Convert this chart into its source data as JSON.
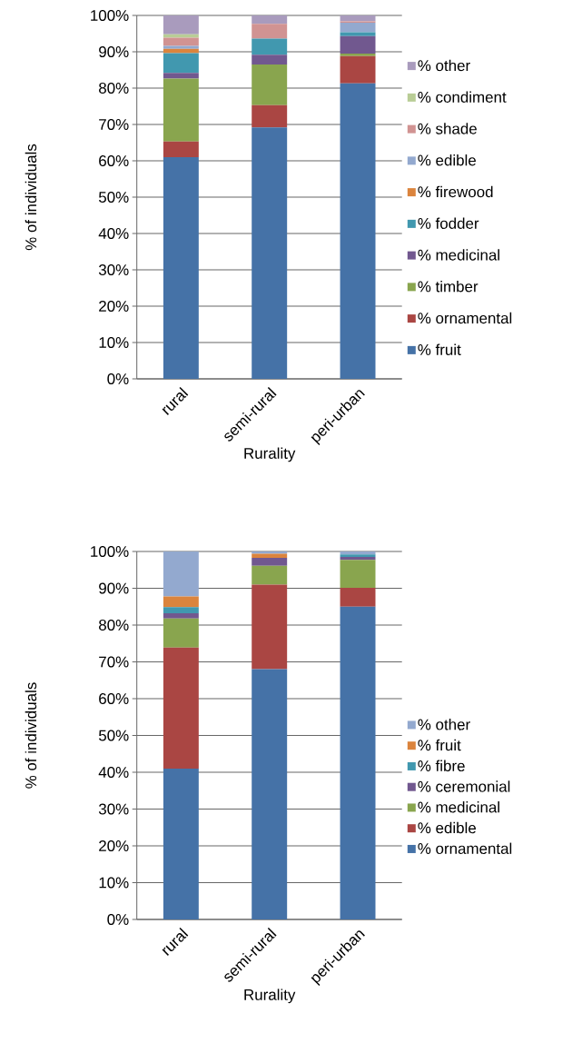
{
  "chart_data": [
    {
      "type": "bar",
      "stacked": true,
      "xlabel": "Rurality",
      "ylabel": "% of individuals",
      "categories": [
        "rural",
        "semi-rural",
        "peri-urban"
      ],
      "ylim": [
        0,
        100
      ],
      "yticks": [
        {
          "value": 0,
          "label": "0%"
        },
        {
          "value": 10,
          "label": "10%"
        },
        {
          "value": 20,
          "label": "20%"
        },
        {
          "value": 30,
          "label": "30%"
        },
        {
          "value": 40,
          "label": "40%"
        },
        {
          "value": 50,
          "label": "50%"
        },
        {
          "value": 60,
          "label": "60%"
        },
        {
          "value": 70,
          "label": "70%"
        },
        {
          "value": 80,
          "label": "80%"
        },
        {
          "value": 90,
          "label": "90%"
        },
        {
          "value": 100,
          "label": "100%"
        }
      ],
      "grid": "y",
      "legend": "right",
      "series": [
        {
          "name": "% fruit",
          "color": "#4572a7",
          "values": [
            61.0,
            69.2,
            81.3
          ]
        },
        {
          "name": "% ornamental",
          "color": "#aa4643",
          "values": [
            4.3,
            6.1,
            7.5
          ]
        },
        {
          "name": "% timber",
          "color": "#89a54e",
          "values": [
            17.3,
            11.2,
            0.7
          ]
        },
        {
          "name": "% medicinal",
          "color": "#71588f",
          "values": [
            1.6,
            2.7,
            4.8
          ]
        },
        {
          "name": "% fodder",
          "color": "#4198af",
          "values": [
            5.4,
            4.4,
            1.1
          ]
        },
        {
          "name": "% firewood",
          "color": "#db843d",
          "values": [
            1.2,
            0,
            0
          ]
        },
        {
          "name": "% edible",
          "color": "#93a9cf",
          "values": [
            0.8,
            0,
            2.6
          ]
        },
        {
          "name": "% shade",
          "color": "#d19392",
          "values": [
            2.3,
            4.1,
            0.4
          ]
        },
        {
          "name": "% condiment",
          "color": "#b9cd96",
          "values": [
            0.9,
            0,
            0
          ]
        },
        {
          "name": "% other",
          "color": "#a99bbd",
          "values": [
            5.2,
            2.3,
            1.6
          ]
        }
      ]
    },
    {
      "type": "bar",
      "stacked": true,
      "xlabel": "Rurality",
      "ylabel": "% of individuals",
      "categories": [
        "rural",
        "semi-rural",
        "peri-urban"
      ],
      "ylim": [
        0,
        100
      ],
      "yticks": [
        {
          "value": 0,
          "label": "0%"
        },
        {
          "value": 10,
          "label": "10%"
        },
        {
          "value": 20,
          "label": "20%"
        },
        {
          "value": 30,
          "label": "30%"
        },
        {
          "value": 40,
          "label": "40%"
        },
        {
          "value": 50,
          "label": "50%"
        },
        {
          "value": 60,
          "label": "60%"
        },
        {
          "value": 70,
          "label": "70%"
        },
        {
          "value": 80,
          "label": "80%"
        },
        {
          "value": 90,
          "label": "90%"
        },
        {
          "value": 100,
          "label": "100%"
        }
      ],
      "grid": "y",
      "legend": "right",
      "series": [
        {
          "name": "% ornamental",
          "color": "#4572a7",
          "values": [
            41.0,
            68.0,
            85.0
          ]
        },
        {
          "name": "% edible",
          "color": "#aa4643",
          "values": [
            32.9,
            23.0,
            5.1
          ]
        },
        {
          "name": "% medicinal",
          "color": "#89a54e",
          "values": [
            7.9,
            5.1,
            7.6
          ]
        },
        {
          "name": "% ceremonial",
          "color": "#71588f",
          "values": [
            1.4,
            2.2,
            0.8
          ]
        },
        {
          "name": "% fibre",
          "color": "#4198af",
          "values": [
            1.7,
            0,
            0.7
          ]
        },
        {
          "name": "% fruit",
          "color": "#db843d",
          "values": [
            2.9,
            1.1,
            0
          ]
        },
        {
          "name": "% other",
          "color": "#93a9cf",
          "values": [
            12.2,
            0.6,
            0.8
          ]
        }
      ]
    }
  ]
}
